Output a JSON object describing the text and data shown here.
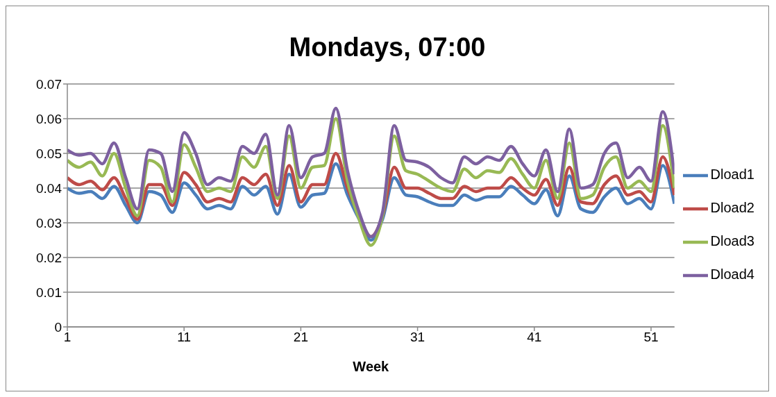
{
  "chart_data": {
    "type": "line",
    "title": "Mondays, 07:00",
    "xlabel": "Week",
    "x": [
      1,
      2,
      3,
      4,
      5,
      6,
      7,
      8,
      9,
      10,
      11,
      12,
      13,
      14,
      15,
      16,
      17,
      18,
      19,
      20,
      21,
      22,
      23,
      24,
      25,
      26,
      27,
      28,
      29,
      30,
      31,
      32,
      33,
      34,
      35,
      36,
      37,
      38,
      39,
      40,
      41,
      42,
      43,
      44,
      45,
      46,
      47,
      48,
      49,
      50,
      51,
      52,
      53
    ],
    "xlim": [
      1,
      53
    ],
    "xticks": [
      1,
      11,
      21,
      31,
      41,
      51
    ],
    "ylim": [
      0,
      0.07
    ],
    "yticks": [
      0,
      0.01,
      0.02,
      0.03,
      0.04,
      0.05,
      0.06,
      0.07
    ],
    "grid": "y",
    "legend": "right",
    "series": [
      {
        "name": "Dload1",
        "color": "#4a7ebb",
        "values": [
          0.04,
          0.0385,
          0.039,
          0.037,
          0.0405,
          0.035,
          0.03,
          0.039,
          0.038,
          0.033,
          0.0415,
          0.038,
          0.034,
          0.035,
          0.034,
          0.0405,
          0.038,
          0.0405,
          0.0325,
          0.044,
          0.0345,
          0.038,
          0.0385,
          0.047,
          0.038,
          0.031,
          0.025,
          0.031,
          0.043,
          0.038,
          0.0375,
          0.036,
          0.035,
          0.035,
          0.038,
          0.0365,
          0.0375,
          0.0375,
          0.0405,
          0.038,
          0.0355,
          0.0395,
          0.032,
          0.0435,
          0.034,
          0.033,
          0.0375,
          0.04,
          0.0355,
          0.037,
          0.034,
          0.0465,
          0.0355
        ]
      },
      {
        "name": "Dload2",
        "color": "#be4b48",
        "values": [
          0.043,
          0.041,
          0.042,
          0.0395,
          0.043,
          0.037,
          0.031,
          0.041,
          0.041,
          0.035,
          0.0445,
          0.041,
          0.036,
          0.037,
          0.036,
          0.043,
          0.041,
          0.044,
          0.035,
          0.0465,
          0.036,
          0.041,
          0.041,
          0.05,
          0.04,
          0.032,
          0.026,
          0.032,
          0.046,
          0.04,
          0.04,
          0.0385,
          0.037,
          0.037,
          0.0405,
          0.039,
          0.04,
          0.04,
          0.043,
          0.04,
          0.038,
          0.0425,
          0.035,
          0.046,
          0.036,
          0.0355,
          0.041,
          0.0435,
          0.038,
          0.039,
          0.036,
          0.049,
          0.038
        ]
      },
      {
        "name": "Dload3",
        "color": "#98b954",
        "values": [
          0.048,
          0.046,
          0.0475,
          0.0435,
          0.05,
          0.04,
          0.032,
          0.048,
          0.046,
          0.036,
          0.0525,
          0.046,
          0.039,
          0.04,
          0.039,
          0.049,
          0.046,
          0.052,
          0.037,
          0.055,
          0.04,
          0.046,
          0.0465,
          0.06,
          0.042,
          0.031,
          0.0235,
          0.032,
          0.055,
          0.045,
          0.044,
          0.042,
          0.04,
          0.039,
          0.0455,
          0.043,
          0.045,
          0.0445,
          0.0485,
          0.044,
          0.04,
          0.048,
          0.037,
          0.053,
          0.037,
          0.038,
          0.046,
          0.049,
          0.04,
          0.042,
          0.039,
          0.058,
          0.04
        ]
      },
      {
        "name": "Dload4",
        "color": "#7d60a0",
        "values": [
          0.051,
          0.0495,
          0.05,
          0.047,
          0.053,
          0.043,
          0.034,
          0.051,
          0.05,
          0.039,
          0.056,
          0.05,
          0.041,
          0.043,
          0.042,
          0.052,
          0.05,
          0.0555,
          0.038,
          0.058,
          0.043,
          0.049,
          0.05,
          0.063,
          0.045,
          0.033,
          0.026,
          0.033,
          0.058,
          0.048,
          0.0475,
          0.046,
          0.043,
          0.0415,
          0.049,
          0.047,
          0.049,
          0.048,
          0.052,
          0.047,
          0.0435,
          0.051,
          0.039,
          0.057,
          0.04,
          0.041,
          0.05,
          0.053,
          0.043,
          0.046,
          0.042,
          0.062,
          0.044
        ]
      }
    ]
  }
}
